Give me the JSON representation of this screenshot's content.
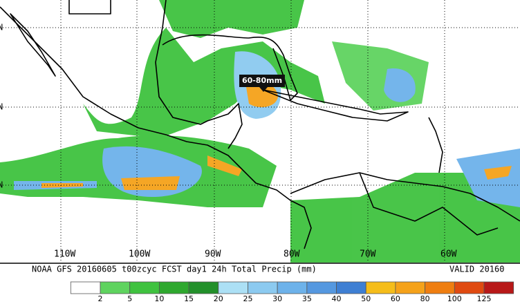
{
  "map": {
    "longitude_labels": [
      "110W",
      "100W",
      "90W",
      "80W",
      "70W",
      "60W"
    ],
    "latitude_labels": [
      "N",
      "N",
      "N"
    ],
    "annotation": "60-80mm",
    "footer": {
      "title": "NOAA GFS 20160605 t00zcyc FCST day1 24h Total Precip (mm)",
      "valid": "VALID 20160"
    }
  },
  "legend": {
    "levels": [
      2,
      5,
      10,
      15,
      20,
      25,
      30,
      35,
      40,
      50,
      60,
      80,
      100,
      125
    ],
    "colors": [
      "#ffffff",
      "#5fd35f",
      "#3fc23f",
      "#2ea82e",
      "#22902a",
      "#ace0f5",
      "#8ccaf0",
      "#6db2ea",
      "#5598e0",
      "#3e7fd3",
      "#f5bd1a",
      "#f5a21a",
      "#ef7e10",
      "#e04a10",
      "#b81818"
    ]
  }
}
